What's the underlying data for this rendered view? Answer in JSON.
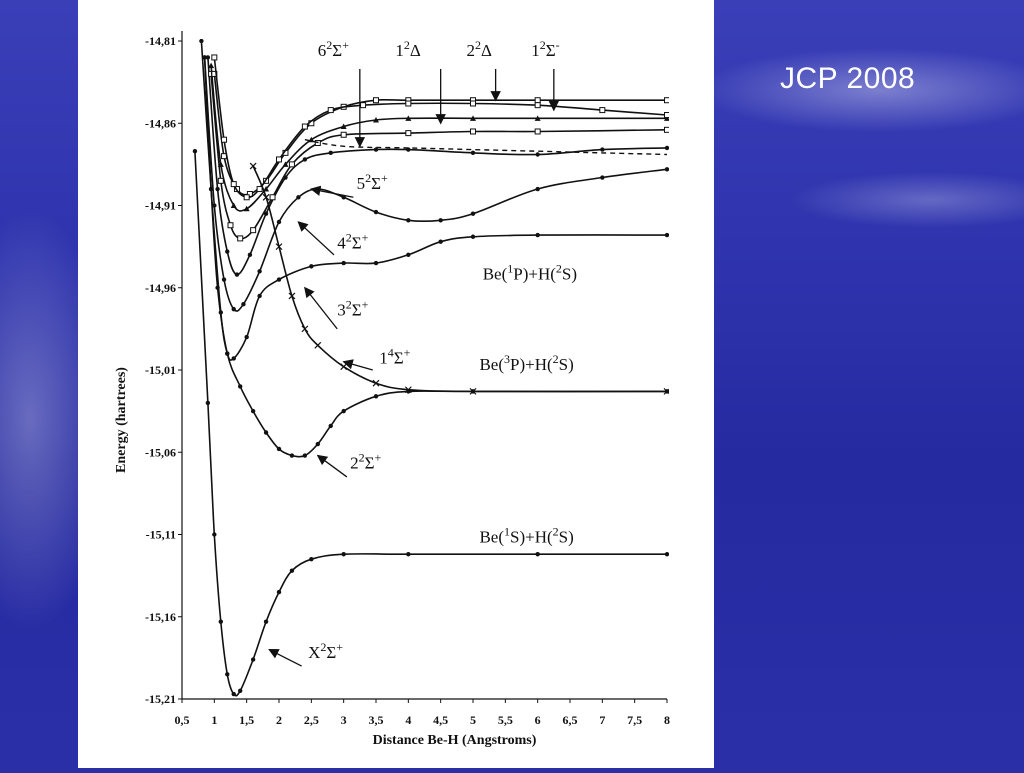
{
  "slide": {
    "note": "JCP 2008"
  },
  "chart_data": {
    "type": "line",
    "xlabel": "Distance Be-H (Angstroms)",
    "ylabel": "Energy (hartrees)",
    "xlim": [
      0.5,
      8
    ],
    "ylim": [
      -15.21,
      -14.81
    ],
    "x_ticks": [
      {
        "value": 0.5,
        "label": "0,5"
      },
      {
        "value": 1,
        "label": "1"
      },
      {
        "value": 1.5,
        "label": "1,5"
      },
      {
        "value": 2,
        "label": "2"
      },
      {
        "value": 2.5,
        "label": "2,5"
      },
      {
        "value": 3,
        "label": "3"
      },
      {
        "value": 3.5,
        "label": "3,5"
      },
      {
        "value": 4,
        "label": "4"
      },
      {
        "value": 4.5,
        "label": "4,5"
      },
      {
        "value": 5,
        "label": "5"
      },
      {
        "value": 5.5,
        "label": "5,5"
      },
      {
        "value": 6,
        "label": "6"
      },
      {
        "value": 6.5,
        "label": "6,5"
      },
      {
        "value": 7,
        "label": "7"
      },
      {
        "value": 7.5,
        "label": "7,5"
      },
      {
        "value": 8,
        "label": "8"
      }
    ],
    "y_ticks": [
      {
        "value": -14.81,
        "label": "-14,81"
      },
      {
        "value": -14.86,
        "label": "-14,86"
      },
      {
        "value": -14.91,
        "label": "-14,91"
      },
      {
        "value": -14.96,
        "label": "-14,96"
      },
      {
        "value": -15.01,
        "label": "-15,01"
      },
      {
        "value": -15.06,
        "label": "-15,06"
      },
      {
        "value": -15.11,
        "label": "-15,11"
      },
      {
        "value": -15.16,
        "label": "-15,16"
      },
      {
        "value": -15.21,
        "label": "-15,21"
      }
    ],
    "grid": false,
    "series": [
      {
        "key": "X2S+",
        "marker": "dot",
        "dash": false,
        "points": [
          [
            0.7,
            -14.877
          ],
          [
            0.9,
            -15.03
          ],
          [
            1.0,
            -15.11
          ],
          [
            1.1,
            -15.163
          ],
          [
            1.2,
            -15.195
          ],
          [
            1.3,
            -15.207
          ],
          [
            1.4,
            -15.205
          ],
          [
            1.6,
            -15.186
          ],
          [
            1.8,
            -15.163
          ],
          [
            2.0,
            -15.145
          ],
          [
            2.2,
            -15.132
          ],
          [
            2.5,
            -15.125
          ],
          [
            3.0,
            -15.122
          ],
          [
            4.0,
            -15.122
          ],
          [
            6.0,
            -15.122
          ],
          [
            8.0,
            -15.122
          ]
        ]
      },
      {
        "key": "22S+",
        "marker": "dot",
        "dash": false,
        "points": [
          [
            0.85,
            -14.82
          ],
          [
            0.95,
            -14.9
          ],
          [
            1.05,
            -14.96
          ],
          [
            1.2,
            -15.0
          ],
          [
            1.4,
            -15.02
          ],
          [
            1.6,
            -15.035
          ],
          [
            1.8,
            -15.048
          ],
          [
            2.0,
            -15.058
          ],
          [
            2.2,
            -15.062
          ],
          [
            2.4,
            -15.062
          ],
          [
            2.6,
            -15.055
          ],
          [
            2.8,
            -15.044
          ],
          [
            3.0,
            -15.035
          ],
          [
            3.5,
            -15.026
          ],
          [
            4.0,
            -15.023
          ],
          [
            5.0,
            -15.023
          ],
          [
            8.0,
            -15.023
          ]
        ]
      },
      {
        "key": "14S+",
        "marker": "cross",
        "dash": false,
        "points": [
          [
            1.6,
            -14.886
          ],
          [
            1.8,
            -14.905
          ],
          [
            2.0,
            -14.935
          ],
          [
            2.2,
            -14.965
          ],
          [
            2.4,
            -14.985
          ],
          [
            2.6,
            -14.995
          ],
          [
            3.0,
            -15.008
          ],
          [
            3.5,
            -15.018
          ],
          [
            4.0,
            -15.022
          ],
          [
            5.0,
            -15.023
          ],
          [
            8.0,
            -15.023
          ]
        ]
      },
      {
        "key": "32S+",
        "marker": "dot",
        "dash": false,
        "points": [
          [
            0.8,
            -14.81
          ],
          [
            0.95,
            -14.9
          ],
          [
            1.1,
            -14.975
          ],
          [
            1.2,
            -15.0
          ],
          [
            1.3,
            -15.003
          ],
          [
            1.5,
            -14.99
          ],
          [
            1.7,
            -14.965
          ],
          [
            2.0,
            -14.955
          ],
          [
            2.5,
            -14.947
          ],
          [
            3.0,
            -14.945
          ],
          [
            3.5,
            -14.945
          ],
          [
            4.0,
            -14.94
          ],
          [
            4.5,
            -14.932
          ],
          [
            5.0,
            -14.929
          ],
          [
            6.0,
            -14.928
          ],
          [
            8.0,
            -14.928
          ]
        ]
      },
      {
        "key": "42S+",
        "marker": "dot",
        "dash": false,
        "points": [
          [
            0.85,
            -14.82
          ],
          [
            1.0,
            -14.91
          ],
          [
            1.15,
            -14.955
          ],
          [
            1.3,
            -14.973
          ],
          [
            1.45,
            -14.97
          ],
          [
            1.7,
            -14.95
          ],
          [
            2.0,
            -14.92
          ],
          [
            2.3,
            -14.905
          ],
          [
            2.6,
            -14.9
          ],
          [
            3.0,
            -14.905
          ],
          [
            3.5,
            -14.914
          ],
          [
            4.0,
            -14.919
          ],
          [
            4.5,
            -14.919
          ],
          [
            5.0,
            -14.915
          ],
          [
            6.0,
            -14.9
          ],
          [
            7.0,
            -14.893
          ],
          [
            8.0,
            -14.888
          ]
        ]
      },
      {
        "key": "52S+",
        "marker": "dot",
        "dash": false,
        "points": [
          [
            0.9,
            -14.82
          ],
          [
            1.05,
            -14.9
          ],
          [
            1.2,
            -14.938
          ],
          [
            1.35,
            -14.952
          ],
          [
            1.55,
            -14.94
          ],
          [
            1.8,
            -14.915
          ],
          [
            2.1,
            -14.893
          ],
          [
            2.4,
            -14.882
          ],
          [
            2.8,
            -14.878
          ],
          [
            3.5,
            -14.876
          ],
          [
            4.0,
            -14.876
          ],
          [
            5.0,
            -14.878
          ],
          [
            6.0,
            -14.879
          ],
          [
            7.0,
            -14.876
          ],
          [
            8.0,
            -14.875
          ]
        ]
      },
      {
        "key": "62S+",
        "marker": "square",
        "dash": false,
        "points": [
          [
            0.95,
            -14.83
          ],
          [
            1.1,
            -14.895
          ],
          [
            1.25,
            -14.922
          ],
          [
            1.4,
            -14.93
          ],
          [
            1.6,
            -14.925
          ],
          [
            1.9,
            -14.905
          ],
          [
            2.2,
            -14.885
          ],
          [
            2.6,
            -14.872
          ],
          [
            3.0,
            -14.867
          ],
          [
            4.0,
            -14.866
          ],
          [
            5.0,
            -14.865
          ],
          [
            6.0,
            -14.865
          ],
          [
            8.0,
            -14.864
          ]
        ]
      },
      {
        "key": "12D",
        "marker": "triangle",
        "dash": false,
        "points": [
          [
            0.95,
            -14.825
          ],
          [
            1.1,
            -14.885
          ],
          [
            1.3,
            -14.91
          ],
          [
            1.5,
            -14.912
          ],
          [
            1.8,
            -14.9
          ],
          [
            2.1,
            -14.885
          ],
          [
            2.5,
            -14.87
          ],
          [
            3.0,
            -14.862
          ],
          [
            3.5,
            -14.858
          ],
          [
            4.0,
            -14.857
          ],
          [
            5.0,
            -14.857
          ],
          [
            6.0,
            -14.857
          ],
          [
            8.0,
            -14.857
          ]
        ]
      },
      {
        "key": "22D",
        "marker": "square",
        "dash": false,
        "points": [
          [
            1.0,
            -14.83
          ],
          [
            1.15,
            -14.88
          ],
          [
            1.35,
            -14.9
          ],
          [
            1.55,
            -14.903
          ],
          [
            1.8,
            -14.895
          ],
          [
            2.1,
            -14.878
          ],
          [
            2.5,
            -14.86
          ],
          [
            3.0,
            -14.85
          ],
          [
            3.5,
            -14.846
          ],
          [
            4.0,
            -14.846
          ],
          [
            5.0,
            -14.846
          ],
          [
            6.0,
            -14.846
          ],
          [
            8.0,
            -14.846
          ]
        ]
      },
      {
        "key": "12S-",
        "marker": "square",
        "dash": false,
        "points": [
          [
            1.0,
            -14.82
          ],
          [
            1.15,
            -14.87
          ],
          [
            1.3,
            -14.897
          ],
          [
            1.5,
            -14.905
          ],
          [
            1.7,
            -14.9
          ],
          [
            2.0,
            -14.882
          ],
          [
            2.4,
            -14.862
          ],
          [
            2.8,
            -14.852
          ],
          [
            3.3,
            -14.849
          ],
          [
            4.0,
            -14.848
          ],
          [
            5.0,
            -14.848
          ],
          [
            6.0,
            -14.849
          ],
          [
            7.0,
            -14.852
          ],
          [
            8.0,
            -14.855
          ]
        ]
      },
      {
        "key": "dashed",
        "marker": "none",
        "dash": true,
        "points": [
          [
            2.4,
            -14.87
          ],
          [
            3.0,
            -14.874
          ],
          [
            4.0,
            -14.875
          ],
          [
            5.0,
            -14.876
          ],
          [
            6.0,
            -14.877
          ],
          [
            7.0,
            -14.878
          ],
          [
            8.0,
            -14.879
          ]
        ]
      }
    ],
    "state_labels": [
      {
        "name": "6",
        "sup": "2",
        "sym": "Σ",
        "sup2": "+",
        "x": 2.6,
        "y": -14.819
      },
      {
        "name": "1",
        "sup": "2",
        "sym": "Δ",
        "sup2": "",
        "x": 3.8,
        "y": -14.819
      },
      {
        "name": "2",
        "sup": "2",
        "sym": "Δ",
        "sup2": "",
        "x": 4.9,
        "y": -14.819
      },
      {
        "name": "1",
        "sup": "2",
        "sym": "Σ",
        "sup2": "-",
        "x": 5.9,
        "y": -14.819
      },
      {
        "name": "5",
        "sup": "2",
        "sym": "Σ",
        "sup2": "+",
        "x": 3.2,
        "y": -14.9
      },
      {
        "name": "4",
        "sup": "2",
        "sym": "Σ",
        "sup2": "+",
        "x": 2.9,
        "y": -14.936
      },
      {
        "name": "3",
        "sup": "2",
        "sym": "Σ",
        "sup2": "+",
        "x": 2.9,
        "y": -14.977
      },
      {
        "name": "1",
        "sup": "4",
        "sym": "Σ",
        "sup2": "+",
        "x": 3.55,
        "y": -15.006
      },
      {
        "name": "2",
        "sup": "2",
        "sym": "Σ",
        "sup2": "+",
        "x": 3.1,
        "y": -15.07
      },
      {
        "name": "X",
        "sup": "2",
        "sym": "Σ",
        "sup2": "+",
        "x": 2.45,
        "y": -15.185
      }
    ],
    "asymptotes": [
      {
        "text": "Be(1P)+H(2S)",
        "a": "Be(",
        "s1": "1",
        "b": "P)+H(",
        "s2": "2",
        "c": "S)",
        "x": 5.15,
        "y": -14.955
      },
      {
        "text": "Be(3P)+H(2S)",
        "a": "Be(",
        "s1": "3",
        "b": "P)+H(",
        "s2": "2",
        "c": "S)",
        "x": 5.1,
        "y": -15.01
      },
      {
        "text": "Be(1S)+H(2S)",
        "a": "Be(",
        "s1": "1",
        "b": "S)+H(",
        "s2": "2",
        "c": "S)",
        "x": 5.1,
        "y": -15.115
      }
    ]
  }
}
